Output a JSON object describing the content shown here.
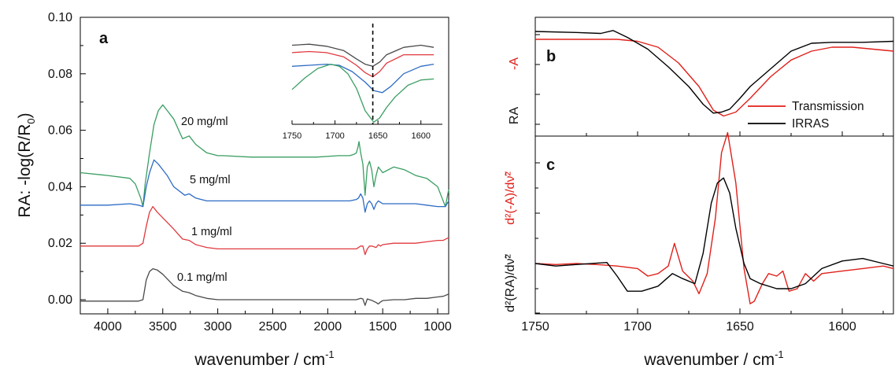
{
  "colors": {
    "c20": "#3a9e62",
    "c5": "#2d6bc4",
    "c1": "#e0393e",
    "c01": "#4a4a4a",
    "transmission": "#e0201a",
    "irras": "#000000",
    "red_label": "#e0201a"
  },
  "panel_a": {
    "letter": "a",
    "xlabel_main": "wavenumber / cm",
    "xlabel_sup": "-1",
    "ylabel_main": "RA: -log(R/R",
    "ylabel_sub": "0",
    "ylabel_close": ")",
    "x_ticks": [
      "4000",
      "3500",
      "3000",
      "2500",
      "2000",
      "1500",
      "1000"
    ],
    "y_ticks": [
      "0.00",
      "0.02",
      "0.04",
      "0.06",
      "0.08",
      "0.10"
    ],
    "curve_labels": [
      "20 mg/ml",
      "5 mg/ml",
      "1 mg/ml",
      "0.1 mg/ml"
    ],
    "inset_x_ticks": [
      "1750",
      "1700",
      "1650",
      "1600"
    ]
  },
  "panel_b": {
    "letter": "b",
    "ylabel_minus_a": "-A",
    "ylabel_ra": "RA",
    "legend": [
      "Transmission",
      "IRRAS"
    ]
  },
  "panel_c": {
    "letter": "c",
    "ylabel_red": "d²(-A)/dν̃²",
    "ylabel_black": "d²(RA)/dν̃²"
  },
  "panels_bc": {
    "xlabel_main": "wavenumber / cm",
    "xlabel_sup": "-1",
    "x_ticks": [
      "1750",
      "1700",
      "1650",
      "1600"
    ]
  },
  "chart_data": [
    {
      "panel": "a",
      "type": "line",
      "xlabel": "wavenumber / cm-1",
      "ylabel": "RA: -log(R/R0)",
      "xlim": [
        4250,
        900
      ],
      "ylim": [
        -0.005,
        0.1
      ],
      "series": [
        {
          "name": "20 mg/ml",
          "color_key": "c20",
          "x": [
            4250,
            4000,
            3800,
            3750,
            3700,
            3680,
            3660,
            3620,
            3580,
            3540,
            3500,
            3460,
            3400,
            3320,
            3260,
            3200,
            3100,
            3000,
            2950,
            2700,
            2400,
            2100,
            1900,
            1800,
            1760,
            1740,
            1725,
            1715,
            1700,
            1680,
            1660,
            1640,
            1620,
            1600,
            1580,
            1560,
            1540,
            1520,
            1500,
            1400,
            1300,
            1200,
            1100,
            1000,
            960,
            930,
            915,
            900
          ],
          "y": [
            0.045,
            0.044,
            0.043,
            0.041,
            0.036,
            0.033,
            0.041,
            0.052,
            0.062,
            0.067,
            0.069,
            0.067,
            0.064,
            0.057,
            0.058,
            0.055,
            0.052,
            0.051,
            0.051,
            0.0505,
            0.0505,
            0.0505,
            0.051,
            0.051,
            0.0515,
            0.052,
            0.054,
            0.056,
            0.052,
            0.048,
            0.037,
            0.047,
            0.049,
            0.046,
            0.04,
            0.044,
            0.047,
            0.046,
            0.045,
            0.047,
            0.046,
            0.044,
            0.043,
            0.04,
            0.036,
            0.033,
            0.036,
            0.039
          ]
        },
        {
          "name": "5 mg/ml",
          "color_key": "c5",
          "x": [
            4250,
            4000,
            3800,
            3720,
            3680,
            3650,
            3620,
            3580,
            3540,
            3500,
            3460,
            3400,
            3300,
            3260,
            3200,
            3100,
            3000,
            2950,
            2700,
            2400,
            2100,
            1900,
            1800,
            1740,
            1720,
            1700,
            1680,
            1660,
            1640,
            1620,
            1600,
            1580,
            1560,
            1540,
            1520,
            1500,
            1400,
            1300,
            1200,
            1100,
            1000,
            960,
            930,
            900
          ],
          "y": [
            0.0335,
            0.0335,
            0.034,
            0.0335,
            0.033,
            0.04,
            0.045,
            0.0495,
            0.048,
            0.046,
            0.044,
            0.04,
            0.037,
            0.0375,
            0.036,
            0.035,
            0.035,
            0.035,
            0.035,
            0.035,
            0.035,
            0.035,
            0.035,
            0.0355,
            0.036,
            0.0375,
            0.036,
            0.031,
            0.034,
            0.035,
            0.034,
            0.032,
            0.034,
            0.035,
            0.0345,
            0.034,
            0.034,
            0.034,
            0.034,
            0.0335,
            0.033,
            0.033,
            0.033,
            0.035
          ]
        },
        {
          "name": "1 mg/ml",
          "color_key": "c1",
          "x": [
            4250,
            4000,
            3800,
            3720,
            3680,
            3650,
            3620,
            3590,
            3550,
            3500,
            3450,
            3400,
            3320,
            3260,
            3200,
            3100,
            3000,
            2950,
            2700,
            2400,
            2100,
            1900,
            1800,
            1740,
            1700,
            1680,
            1660,
            1640,
            1620,
            1600,
            1560,
            1540,
            1520,
            1500,
            1400,
            1300,
            1200,
            1100,
            1000,
            950,
            900
          ],
          "y": [
            0.019,
            0.019,
            0.019,
            0.019,
            0.02,
            0.026,
            0.031,
            0.033,
            0.031,
            0.029,
            0.027,
            0.025,
            0.0215,
            0.021,
            0.0195,
            0.0185,
            0.018,
            0.018,
            0.018,
            0.018,
            0.018,
            0.018,
            0.018,
            0.018,
            0.019,
            0.019,
            0.016,
            0.018,
            0.019,
            0.019,
            0.0185,
            0.0195,
            0.019,
            0.0195,
            0.02,
            0.02,
            0.02,
            0.0205,
            0.021,
            0.021,
            0.022
          ]
        },
        {
          "name": "0.1 mg/ml",
          "color_key": "c01",
          "x": [
            4250,
            4000,
            3800,
            3720,
            3680,
            3650,
            3620,
            3590,
            3550,
            3500,
            3450,
            3400,
            3320,
            3260,
            3200,
            3100,
            3000,
            2950,
            2700,
            2400,
            2100,
            1900,
            1800,
            1740,
            1700,
            1680,
            1660,
            1640,
            1620,
            1600,
            1560,
            1540,
            1520,
            1500,
            1400,
            1300,
            1200,
            1100,
            1000,
            950,
            900
          ],
          "y": [
            -0.0005,
            -0.0005,
            -0.0005,
            -0.0005,
            0.0,
            0.007,
            0.01,
            0.011,
            0.0105,
            0.009,
            0.007,
            0.005,
            0.003,
            0.0025,
            0.0015,
            0.0005,
            0.0,
            0.0,
            0.0,
            0.0,
            0.0,
            0.0,
            0.0,
            0.0,
            0.0005,
            0.0003,
            -0.002,
            0.0003,
            0.0,
            -0.0002,
            -0.001,
            -0.0015,
            -0.0008,
            -0.0003,
            0.0,
            0.0,
            0.0005,
            0.0005,
            0.001,
            0.0012,
            0.002
          ]
        }
      ],
      "annotations": [
        "20 mg/ml",
        "5 mg/ml",
        "1 mg/ml",
        "0.1 mg/ml"
      ],
      "inset": {
        "xlim": [
          1750,
          1575
        ],
        "marker_x": 1656,
        "series": [
          {
            "color_key": "c01",
            "x": [
              1750,
              1730,
              1710,
              1690,
              1675,
              1665,
              1656,
              1648,
              1640,
              1620,
              1600,
              1585
            ],
            "y": [
              0.75,
              0.76,
              0.74,
              0.7,
              0.62,
              0.57,
              0.55,
              0.59,
              0.66,
              0.73,
              0.75,
              0.73
            ]
          },
          {
            "color_key": "c1",
            "x": [
              1750,
              1730,
              1710,
              1690,
              1675,
              1665,
              1656,
              1648,
              1640,
              1620,
              1600,
              1585
            ],
            "y": [
              0.68,
              0.69,
              0.68,
              0.64,
              0.56,
              0.49,
              0.45,
              0.5,
              0.58,
              0.66,
              0.66,
              0.66
            ]
          },
          {
            "color_key": "c5",
            "x": [
              1750,
              1730,
              1710,
              1695,
              1680,
              1665,
              1655,
              1645,
              1635,
              1620,
              1600,
              1585
            ],
            "y": [
              0.55,
              0.56,
              0.57,
              0.56,
              0.5,
              0.4,
              0.32,
              0.3,
              0.36,
              0.48,
              0.55,
              0.57
            ]
          },
          {
            "color_key": "c20",
            "x": [
              1750,
              1735,
              1720,
              1705,
              1695,
              1685,
              1675,
              1665,
              1655,
              1648,
              1640,
              1630,
              1615,
              1600,
              1585
            ],
            "y": [
              0.33,
              0.44,
              0.53,
              0.57,
              0.55,
              0.48,
              0.34,
              0.13,
              0.02,
              0.06,
              0.16,
              0.26,
              0.37,
              0.42,
              0.43
            ]
          }
        ]
      }
    },
    {
      "panel": "b",
      "type": "line",
      "xlim": [
        1750,
        1575
      ],
      "ylabel": "-A / RA",
      "series": [
        {
          "name": "Transmission",
          "color_key": "transmission",
          "x": [
            1750,
            1730,
            1710,
            1700,
            1690,
            1680,
            1670,
            1663,
            1658,
            1652,
            1645,
            1635,
            1625,
            1615,
            1605,
            1595,
            1585,
            1575
          ],
          "y": [
            0.88,
            0.88,
            0.88,
            0.86,
            0.8,
            0.64,
            0.4,
            0.16,
            0.1,
            0.14,
            0.28,
            0.5,
            0.67,
            0.76,
            0.8,
            0.8,
            0.78,
            0.76
          ]
        },
        {
          "name": "IRRAS",
          "color_key": "irras",
          "x": [
            1750,
            1730,
            1718,
            1712,
            1705,
            1695,
            1685,
            1675,
            1668,
            1663,
            1659,
            1655,
            1650,
            1645,
            1635,
            1625,
            1615,
            1605,
            1590,
            1575
          ],
          "y": [
            0.96,
            0.95,
            0.94,
            0.97,
            0.9,
            0.78,
            0.6,
            0.4,
            0.22,
            0.13,
            0.14,
            0.17,
            0.28,
            0.4,
            0.58,
            0.76,
            0.84,
            0.85,
            0.85,
            0.86
          ]
        }
      ],
      "legend": "inside bottom-right"
    },
    {
      "panel": "c",
      "type": "line",
      "xlim": [
        1750,
        1575
      ],
      "series": [
        {
          "name": "Transmission",
          "color_key": "transmission",
          "x": [
            1750,
            1740,
            1730,
            1720,
            1710,
            1700,
            1695,
            1690,
            1685,
            1682,
            1678,
            1673,
            1670,
            1666,
            1662,
            1659,
            1656,
            1652,
            1648,
            1645,
            1643,
            1639,
            1636,
            1632,
            1629,
            1626,
            1622,
            1618,
            1614,
            1610,
            1600,
            1590,
            1580,
            1575
          ],
          "y": [
            0,
            -0.02,
            0,
            -0.02,
            -0.05,
            -0.1,
            -0.25,
            -0.2,
            -0.05,
            0.4,
            -0.15,
            -0.35,
            -0.6,
            -0.2,
            0.9,
            2.2,
            2.6,
            1.6,
            -0.1,
            -0.8,
            -0.75,
            -0.4,
            -0.2,
            -0.25,
            -0.15,
            -0.55,
            -0.5,
            -0.2,
            -0.35,
            -0.2,
            -0.15,
            -0.1,
            -0.05,
            -0.1
          ]
        },
        {
          "name": "IRRAS",
          "color_key": "irras",
          "x": [
            1750,
            1740,
            1730,
            1715,
            1710,
            1705,
            1698,
            1690,
            1683,
            1678,
            1672,
            1668,
            1664,
            1661,
            1658,
            1655,
            1652,
            1648,
            1645,
            1640,
            1632,
            1625,
            1618,
            1610,
            1600,
            1590,
            1580,
            1575
          ],
          "y": [
            0,
            -0.05,
            -0.02,
            0.02,
            -0.25,
            -0.55,
            -0.55,
            -0.45,
            -0.2,
            -0.3,
            -0.4,
            0.2,
            1.2,
            1.6,
            1.7,
            1.4,
            0.7,
            0.0,
            -0.3,
            -0.4,
            -0.5,
            -0.5,
            -0.4,
            -0.1,
            0.05,
            0.1,
            0.0,
            -0.05
          ]
        }
      ]
    }
  ]
}
